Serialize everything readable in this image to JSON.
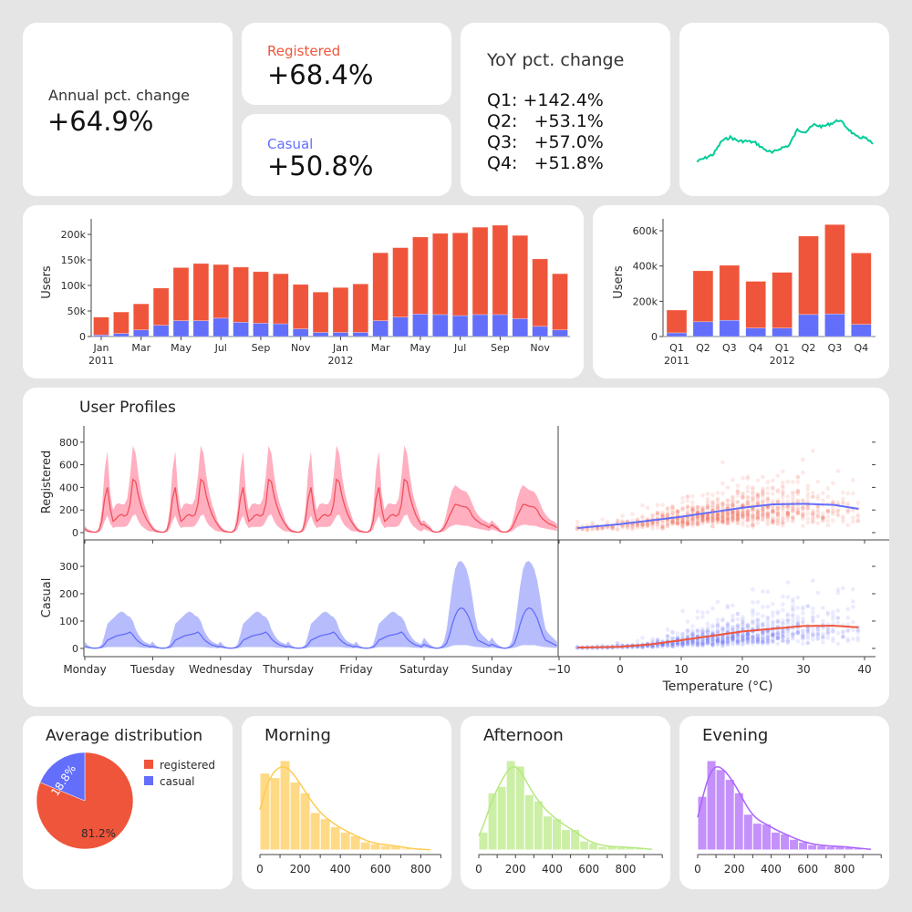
{
  "kpi": {
    "annual_label": "Annual pct. change",
    "annual_value": "+64.9%",
    "registered_label": "Registered",
    "registered_value": "+68.4%",
    "casual_label": "Casual",
    "casual_value": "+50.8%",
    "yoy_title": "YoY pct. change",
    "yoy_rows": [
      "Q1: +142.4%",
      "Q2:   +53.1%",
      "Q3:   +57.0%",
      "Q4:   +51.8%"
    ]
  },
  "colors": {
    "registered": "#EF553B",
    "casual": "#636EFA",
    "sparkline": "#00CC96",
    "morning": "#FECB52",
    "afternoon": "#B6E880",
    "evening": "#AB63FA",
    "registered_band": "#FFA1B5"
  },
  "chart_data": [
    {
      "id": "sparkline",
      "type": "line",
      "values": [
        2,
        11,
        21,
        55,
        64,
        54,
        54,
        50,
        34,
        24,
        36,
        43,
        83,
        78,
        96,
        91,
        99,
        108,
        87,
        65,
        63,
        47
      ]
    },
    {
      "id": "monthly",
      "type": "bar",
      "stacked": true,
      "ylabel": "Users",
      "yticks": [
        "0",
        "50k",
        "100k",
        "150k",
        "200k"
      ],
      "ytick_values": [
        0,
        50000,
        100000,
        150000,
        200000
      ],
      "categories": [
        "Jan 2011",
        "Feb 2011",
        "Mar 2011",
        "Apr 2011",
        "May 2011",
        "Jun 2011",
        "Jul 2011",
        "Aug 2011",
        "Sep 2011",
        "Oct 2011",
        "Nov 2011",
        "Dec 2011",
        "Jan 2012",
        "Feb 2012",
        "Mar 2012",
        "Apr 2012",
        "May 2012",
        "Jun 2012",
        "Jul 2012",
        "Aug 2012",
        "Sep 2012",
        "Oct 2012",
        "Nov 2012",
        "Dec 2012"
      ],
      "xtick_labels": [
        "Jan",
        "Mar",
        "May",
        "Jul",
        "Sep",
        "Nov",
        "Jan",
        "Mar",
        "May",
        "Jul",
        "Sep",
        "Nov"
      ],
      "year_labels": [
        "2011",
        "2012"
      ],
      "series": [
        {
          "key": "casual",
          "values": [
            3000,
            6000,
            13000,
            22000,
            31000,
            31000,
            36000,
            28000,
            26000,
            25000,
            15000,
            8000,
            8000,
            8000,
            31000,
            38000,
            44000,
            43000,
            41000,
            43000,
            43000,
            35000,
            20000,
            13000
          ]
        },
        {
          "key": "registered",
          "values": [
            35000,
            42000,
            51000,
            73000,
            104000,
            112000,
            105000,
            108000,
            101000,
            98000,
            87000,
            79000,
            88000,
            95000,
            133000,
            136000,
            151000,
            159000,
            162000,
            171000,
            175000,
            163000,
            132000,
            110000
          ]
        }
      ]
    },
    {
      "id": "quarterly",
      "type": "bar",
      "stacked": true,
      "ylabel": "Users",
      "yticks": [
        "0",
        "200k",
        "400k",
        "600k"
      ],
      "ytick_values": [
        0,
        200000,
        400000,
        600000
      ],
      "categories": [
        "Q1",
        "Q2",
        "Q3",
        "Q4",
        "Q1",
        "Q2",
        "Q3",
        "Q4"
      ],
      "year_labels": [
        "2011",
        "2012"
      ],
      "series": [
        {
          "key": "casual",
          "values": [
            21000,
            84000,
            92000,
            48000,
            48000,
            125000,
            128000,
            69000
          ]
        },
        {
          "key": "registered",
          "values": [
            129000,
            289000,
            312000,
            265000,
            316000,
            445000,
            507000,
            405000
          ]
        }
      ]
    },
    {
      "id": "profiles",
      "type": "area",
      "title": "User Profiles",
      "days": [
        "Monday",
        "Tuesday",
        "Wednesday",
        "Thursday",
        "Friday",
        "Saturday",
        "Sunday"
      ],
      "day_types": [
        "weekday",
        "weekday",
        "weekday",
        "weekday",
        "weekday",
        "weekend",
        "weekend"
      ],
      "registered": {
        "ylabel": "Registered",
        "yticks": [
          0,
          200,
          400,
          600,
          800
        ],
        "weekday": {
          "mean": [
            35,
            15,
            8,
            4,
            4,
            20,
            100,
            300,
            400,
            210,
            100,
            120,
            150,
            160,
            145,
            160,
            250,
            470,
            450,
            320,
            230,
            160,
            110,
            70
          ],
          "upper": [
            60,
            30,
            20,
            10,
            10,
            40,
            200,
            550,
            720,
            350,
            200,
            250,
            260,
            250,
            250,
            300,
            500,
            770,
            700,
            500,
            350,
            250,
            180,
            100
          ],
          "lower": [
            10,
            3,
            1,
            0,
            0,
            5,
            30,
            100,
            150,
            80,
            40,
            50,
            50,
            50,
            50,
            60,
            100,
            150,
            160,
            100,
            60,
            40,
            20,
            10
          ]
        },
        "weekend": {
          "mean": [
            70,
            50,
            35,
            12,
            5,
            5,
            15,
            40,
            90,
            150,
            200,
            250,
            245,
            235,
            230,
            225,
            200,
            150,
            120,
            100,
            80,
            70,
            60,
            45
          ],
          "upper": [
            110,
            80,
            60,
            20,
            10,
            10,
            30,
            80,
            180,
            300,
            380,
            420,
            400,
            380,
            370,
            360,
            320,
            260,
            200,
            160,
            130,
            110,
            100,
            80
          ],
          "lower": [
            30,
            20,
            10,
            3,
            1,
            1,
            5,
            10,
            30,
            50,
            60,
            70,
            70,
            65,
            60,
            60,
            55,
            45,
            40,
            35,
            30,
            25,
            20,
            15
          ]
        }
      },
      "casual": {
        "ylabel": "Casual",
        "yticks": [
          0,
          100,
          200,
          300
        ],
        "weekday": {
          "mean": [
            8,
            4,
            2,
            1,
            1,
            2,
            5,
            15,
            30,
            35,
            40,
            45,
            48,
            50,
            52,
            55,
            60,
            50,
            35,
            25,
            18,
            12,
            10,
            6
          ],
          "upper": [
            25,
            12,
            6,
            3,
            2,
            5,
            15,
            50,
            90,
            100,
            110,
            120,
            130,
            135,
            130,
            120,
            115,
            100,
            70,
            50,
            35,
            25,
            20,
            15
          ],
          "lower": [
            2,
            1,
            0,
            0,
            0,
            0,
            1,
            3,
            5,
            5,
            5,
            5,
            5,
            5,
            5,
            5,
            5,
            5,
            5,
            4,
            3,
            2,
            2,
            1
          ]
        },
        "weekend": {
          "mean": [
            15,
            10,
            6,
            3,
            1,
            1,
            3,
            8,
            20,
            50,
            90,
            120,
            140,
            148,
            145,
            130,
            110,
            80,
            50,
            30,
            25,
            20,
            15,
            10
          ],
          "upper": [
            40,
            25,
            15,
            8,
            3,
            3,
            8,
            25,
            70,
            150,
            230,
            290,
            315,
            320,
            310,
            290,
            250,
            190,
            120,
            70,
            55,
            45,
            35,
            25
          ],
          "lower": [
            3,
            2,
            1,
            0,
            0,
            0,
            0,
            1,
            3,
            6,
            10,
            12,
            12,
            12,
            12,
            12,
            10,
            8,
            6,
            5,
            4,
            3,
            2,
            2
          ]
        }
      }
    },
    {
      "id": "temperature",
      "type": "scatter",
      "xlabel": "Temperature (°C)",
      "xticks": [
        -10,
        0,
        10,
        20,
        30,
        40
      ],
      "xtick_labels": [
        "−10",
        "0",
        "10",
        "20",
        "30",
        "40"
      ],
      "xlim": [
        -10,
        42
      ],
      "registered_trend": {
        "x": [
          -7,
          0,
          10,
          20,
          25,
          30,
          35,
          39
        ],
        "y": [
          40,
          75,
          140,
          220,
          250,
          255,
          245,
          210
        ]
      },
      "casual_trend": {
        "x": [
          -7,
          0,
          5,
          10,
          20,
          30,
          35,
          39
        ],
        "y": [
          3,
          6,
          15,
          30,
          62,
          82,
          83,
          77
        ]
      }
    },
    {
      "id": "distribution",
      "type": "pie",
      "title": "Average distribution",
      "labels": [
        "registered",
        "casual"
      ],
      "values": [
        81.2,
        18.8
      ],
      "text": [
        "81.2%",
        "18.8%"
      ]
    },
    {
      "id": "morning",
      "type": "bar",
      "title": "Morning",
      "bin_width": 50,
      "xticks": [
        0,
        200,
        400,
        600,
        800
      ],
      "xlim": [
        0,
        900
      ],
      "relative_counts": [
        0.86,
        0.81,
        1.0,
        0.76,
        0.64,
        0.42,
        0.35,
        0.26,
        0.2,
        0.16,
        0.09,
        0.07,
        0.05,
        0.05,
        0.02,
        0.01,
        0.005
      ]
    },
    {
      "id": "afternoon",
      "type": "bar",
      "title": "Afternoon",
      "bin_width": 50,
      "xticks": [
        0,
        200,
        400,
        600,
        800
      ],
      "xlim": [
        0,
        1000
      ],
      "relative_counts": [
        0.2,
        0.64,
        0.71,
        1.0,
        0.94,
        0.62,
        0.55,
        0.38,
        0.35,
        0.23,
        0.23,
        0.1,
        0.08,
        0.04,
        0.04,
        0.03,
        0.03,
        0.02,
        0.01
      ]
    },
    {
      "id": "evening",
      "type": "bar",
      "title": "Evening",
      "bin_width": 50,
      "xticks": [
        0,
        200,
        400,
        600,
        800
      ],
      "xlim": [
        0,
        1000
      ],
      "relative_counts": [
        0.6,
        1.0,
        0.9,
        0.79,
        0.64,
        0.4,
        0.3,
        0.29,
        0.2,
        0.18,
        0.12,
        0.09,
        0.06,
        0.05,
        0.04,
        0.04,
        0.03,
        0.02,
        0.01
      ]
    }
  ]
}
